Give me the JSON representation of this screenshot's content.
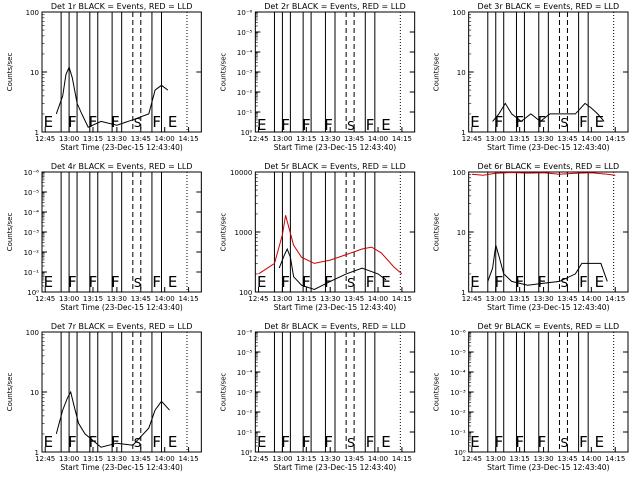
{
  "chart_data": [
    {
      "type": "line",
      "title": "Det 1r BLACK = Events, RED = LLD",
      "xlabel": "Start Time (23-Dec-15 12:43:40)",
      "ylabel": "Counts/sec",
      "xticks": [
        "12:45",
        "13:00",
        "13:15",
        "13:30",
        "13:45",
        "14:00",
        "14:15"
      ],
      "yscale": "log",
      "yticks": [
        "1",
        "10",
        "100"
      ],
      "markers": [
        "E",
        "F",
        "F",
        "F",
        "S",
        "F",
        "E"
      ],
      "series": [
        {
          "color": "#000000",
          "x": [
            "12:52",
            "12:56",
            "12:58",
            "13:00",
            "13:02",
            "13:05",
            "13:08",
            "13:12",
            "13:20",
            "13:30",
            "13:40",
            "13:50",
            "13:54",
            "13:58",
            "14:02"
          ],
          "y": [
            2,
            4,
            9,
            12,
            8,
            3,
            2,
            1.2,
            1.5,
            1.3,
            1.6,
            2,
            5,
            6,
            5
          ]
        }
      ]
    },
    {
      "type": "line",
      "title": "Det 2r BLACK = Events, RED = LLD",
      "xlabel": "Start Time (23-Dec-15 12:43:40)",
      "ylabel": "Counts/sec",
      "xticks": [
        "12:45",
        "13:00",
        "13:15",
        "13:30",
        "13:45",
        "14:00",
        "14:15"
      ],
      "yscale": "log",
      "yticks": [
        "10⁰",
        "10⁻¹",
        "10⁻²",
        "10⁻³",
        "10⁻⁴",
        "10⁻⁵",
        "10⁻⁶"
      ],
      "markers": [
        "E",
        "F",
        "F",
        "F",
        "S",
        "F",
        "E"
      ],
      "series": []
    },
    {
      "type": "line",
      "title": "Det 3r BLACK = Events, RED = LLD",
      "xlabel": "Start Time (23-Dec-15 12:43:40)",
      "ylabel": "Counts/sec",
      "xticks": [
        "12:45",
        "13:00",
        "13:15",
        "13:30",
        "13:45",
        "14:00",
        "14:15"
      ],
      "yscale": "log",
      "yticks": [
        "1",
        "10",
        "100"
      ],
      "markers": [
        "E",
        "F",
        "F",
        "F",
        "S",
        "F",
        "E"
      ],
      "series": [
        {
          "color": "#000000",
          "x": [
            "12:58",
            "13:02",
            "13:06",
            "13:10",
            "13:16",
            "13:22",
            "13:28",
            "13:34",
            "13:50",
            "13:56",
            "14:00",
            "14:04",
            "14:08"
          ],
          "y": [
            1.5,
            2,
            3,
            2,
            1.5,
            2,
            1.5,
            2,
            2,
            3,
            2.5,
            2,
            1.5
          ]
        }
      ]
    },
    {
      "type": "line",
      "title": "Det 4r BLACK = Events, RED = LLD",
      "xlabel": "Start Time (23-Dec-15 12:43:40)",
      "ylabel": "Counts/sec",
      "xticks": [
        "12:45",
        "13:00",
        "13:15",
        "13:30",
        "13:45",
        "14:00",
        "14:15"
      ],
      "yscale": "log",
      "yticks": [
        "10⁰",
        "10⁻¹",
        "10⁻²",
        "10⁻³",
        "10⁻⁴",
        "10⁻⁵",
        "10⁻⁶"
      ],
      "markers": [
        "E",
        "F",
        "F",
        "F",
        "S",
        "F",
        "E"
      ],
      "series": []
    },
    {
      "type": "line",
      "title": "Det 5r BLACK = Events, RED = LLD",
      "xlabel": "Start Time (23-Dec-15 12:43:40)",
      "ylabel": "Counts/sec",
      "xticks": [
        "12:45",
        "13:00",
        "13:15",
        "13:30",
        "13:45",
        "14:00",
        "14:15"
      ],
      "yscale": "log",
      "yticks": [
        "100",
        "1000",
        "10000"
      ],
      "markers": [
        "E",
        "F",
        "F",
        "F",
        "S",
        "F",
        "E"
      ],
      "series": [
        {
          "color": "#000000",
          "x": [
            "12:58",
            "13:01",
            "13:03",
            "13:05",
            "13:07",
            "13:12",
            "13:20",
            "13:30",
            "13:40",
            "13:50",
            "14:00",
            "14:05"
          ],
          "y": [
            250,
            400,
            520,
            380,
            180,
            130,
            110,
            150,
            200,
            250,
            200,
            160
          ]
        },
        {
          "color": "#cc0000",
          "x": [
            "12:45",
            "12:55",
            "13:00",
            "13:02",
            "13:04",
            "13:07",
            "13:12",
            "13:20",
            "13:30",
            "13:40",
            "13:50",
            "13:56",
            "14:02",
            "14:10",
            "14:15"
          ],
          "y": [
            200,
            300,
            900,
            1900,
            1200,
            600,
            380,
            300,
            340,
            420,
            520,
            560,
            450,
            260,
            200
          ]
        }
      ]
    },
    {
      "type": "line",
      "title": "Det 6r BLACK = Events, RED = LLD",
      "xlabel": "Start Time (23-Dec-15 12:43:40)",
      "ylabel": "Counts/sec",
      "xticks": [
        "12:45",
        "13:00",
        "13:15",
        "13:30",
        "13:45",
        "14:00",
        "14:15"
      ],
      "yscale": "log",
      "yticks": [
        "1",
        "10",
        "100"
      ],
      "markers": [
        "E",
        "F",
        "F",
        "F",
        "S",
        "F",
        "E"
      ],
      "series": [
        {
          "color": "#000000",
          "x": [
            "12:55",
            "12:58",
            "13:00",
            "13:02",
            "13:05",
            "13:10",
            "13:20",
            "13:30",
            "13:40",
            "13:50",
            "13:54",
            "14:00",
            "14:06",
            "14:10"
          ],
          "y": [
            1.5,
            2.5,
            6,
            4,
            2,
            1.5,
            1.3,
            1.4,
            1.5,
            2,
            3,
            3,
            3,
            1.5
          ]
        },
        {
          "color": "#cc0000",
          "x": [
            "12:45",
            "12:52",
            "13:00",
            "13:10",
            "13:20",
            "13:30",
            "13:40",
            "13:50",
            "14:00",
            "14:10",
            "14:15"
          ],
          "y": [
            92,
            88,
            95,
            98,
            96,
            97,
            92,
            95,
            97,
            92,
            88
          ]
        }
      ]
    },
    {
      "type": "line",
      "title": "Det 7r BLACK = Events, RED = LLD",
      "xlabel": "Start Time (23-Dec-15 12:43:40)",
      "ylabel": "Counts/sec",
      "xticks": [
        "12:45",
        "13:00",
        "13:15",
        "13:30",
        "13:45",
        "14:00",
        "14:15"
      ],
      "yscale": "log",
      "yticks": [
        "1",
        "10",
        "100"
      ],
      "markers": [
        "E",
        "F",
        "F",
        "F",
        "S",
        "F",
        "E"
      ],
      "series": [
        {
          "color": "#000000",
          "x": [
            "12:52",
            "12:56",
            "12:59",
            "13:01",
            "13:03",
            "13:06",
            "13:10",
            "13:20",
            "13:30",
            "13:40",
            "13:50",
            "13:54",
            "13:58",
            "14:03"
          ],
          "y": [
            2,
            5,
            8,
            10,
            6,
            3,
            2,
            1.2,
            1.4,
            1.3,
            2.5,
            5,
            7,
            5
          ]
        }
      ]
    },
    {
      "type": "line",
      "title": "Det 8r BLACK = Events, RED = LLD",
      "xlabel": "Start Time (23-Dec-15 12:43:40)",
      "ylabel": "Counts/sec",
      "xticks": [
        "12:45",
        "13:00",
        "13:15",
        "13:30",
        "13:45",
        "14:00",
        "14:15"
      ],
      "yscale": "log",
      "yticks": [
        "10⁰",
        "10⁻¹",
        "10⁻²",
        "10⁻³",
        "10⁻⁴",
        "10⁻⁵",
        "10⁻⁶"
      ],
      "markers": [
        "E",
        "F",
        "F",
        "F",
        "S",
        "F",
        "E"
      ],
      "series": []
    },
    {
      "type": "line",
      "title": "Det 9r BLACK = Events, RED = LLD",
      "xlabel": "Start Time (23-Dec-15 12:43:40)",
      "ylabel": "Counts/sec",
      "xticks": [
        "12:45",
        "13:00",
        "13:15",
        "13:30",
        "13:45",
        "14:00",
        "14:15"
      ],
      "yscale": "log",
      "yticks": [
        "10⁰",
        "10⁻¹",
        "10⁻²",
        "10⁻³",
        "10⁻⁴",
        "10⁻⁵",
        "10⁻⁶"
      ],
      "markers": [
        "E",
        "F",
        "F",
        "F",
        "S",
        "F",
        "E"
      ],
      "series": []
    }
  ]
}
